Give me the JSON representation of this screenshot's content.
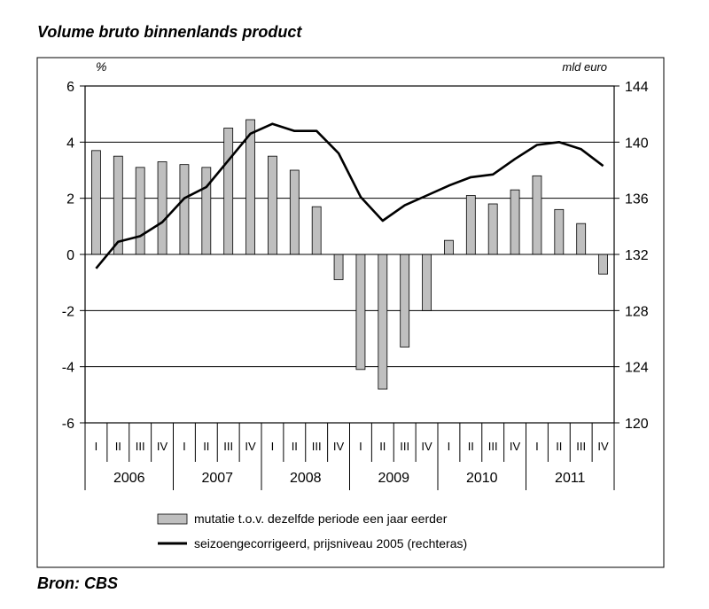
{
  "chart_data": {
    "type": "bar+line",
    "title": "Volume bruto binnenlands product",
    "source": "Bron: CBS",
    "left_axis": {
      "unit": "%",
      "ylim": [
        -6,
        6
      ],
      "ticks": [
        6,
        4,
        2,
        0,
        -2,
        -4,
        -6
      ]
    },
    "right_axis": {
      "unit": "mld euro",
      "ylim": [
        120,
        144
      ],
      "ticks": [
        144,
        140,
        136,
        132,
        128,
        124,
        120
      ]
    },
    "quarter_labels": [
      "I",
      "II",
      "III",
      "IV"
    ],
    "years": [
      "2006",
      "2007",
      "2008",
      "2009",
      "2010",
      "2011"
    ],
    "categories": [
      "2006 I",
      "2006 II",
      "2006 III",
      "2006 IV",
      "2007 I",
      "2007 II",
      "2007 III",
      "2007 IV",
      "2008 I",
      "2008 II",
      "2008 III",
      "2008 IV",
      "2009 I",
      "2009 II",
      "2009 III",
      "2009 IV",
      "2010 I",
      "2010 II",
      "2010 III",
      "2010 IV",
      "2011 I",
      "2011 II",
      "2011 III",
      "2011 IV"
    ],
    "series": [
      {
        "name": "mutatie t.o.v. dezelfde periode een jaar eerder",
        "type": "bar",
        "axis": "left",
        "color": "#bfbfbf",
        "values": [
          3.7,
          3.5,
          3.1,
          3.3,
          3.2,
          3.1,
          4.5,
          4.8,
          3.5,
          3.0,
          1.7,
          -0.9,
          -4.1,
          -4.8,
          -3.3,
          -2.0,
          0.5,
          2.1,
          1.8,
          2.3,
          2.8,
          1.6,
          1.1,
          -0.7
        ]
      },
      {
        "name": "seizoengecorrigeerd, prijsniveau 2005 (rechteras)",
        "type": "line",
        "axis": "right",
        "color": "#000000",
        "values": [
          131.0,
          132.9,
          133.3,
          134.3,
          136.0,
          136.8,
          138.7,
          140.6,
          141.3,
          140.8,
          140.8,
          139.2,
          136.1,
          134.4,
          135.5,
          136.2,
          136.9,
          137.5,
          137.7,
          138.8,
          139.8,
          140.0,
          139.5,
          138.3
        ]
      }
    ],
    "grid": {
      "horizontal": true,
      "lines_at_left_values": [
        4,
        2,
        -2,
        -4
      ]
    }
  }
}
